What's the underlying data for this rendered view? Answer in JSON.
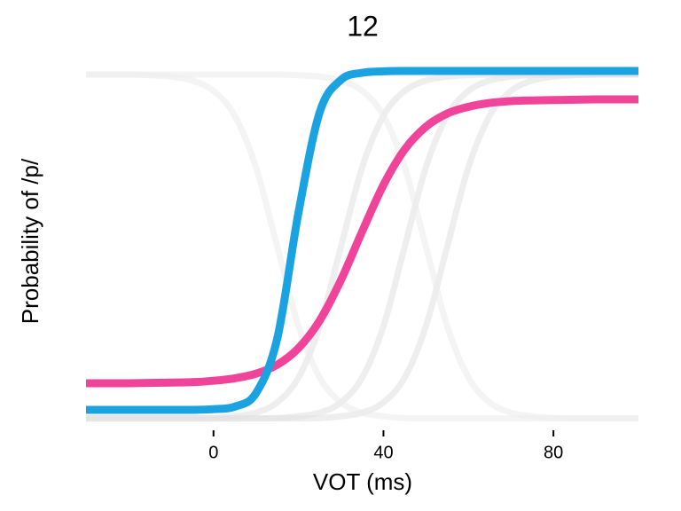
{
  "chart_data": {
    "type": "line",
    "title": "12",
    "xlabel": "VOT (ms)",
    "ylabel": "Probability of /p/",
    "x": [
      -30,
      -25,
      -20,
      -15,
      -10,
      -5,
      0,
      5,
      10,
      15,
      20,
      25,
      30,
      35,
      40,
      45,
      50,
      55,
      60,
      65,
      70,
      75,
      80,
      85,
      90,
      95,
      100
    ],
    "xlim": [
      -30,
      100
    ],
    "xticks": [
      0,
      40,
      80
    ],
    "ylim": [
      0,
      1
    ],
    "series": [
      {
        "color": "#e3e3e3",
        "values": [
          0.001,
          0.001,
          0.001,
          0.001,
          0.001,
          0.001,
          0.002,
          0.007,
          0.017,
          0.046,
          0.116,
          0.261,
          0.485,
          0.709,
          0.854,
          0.924,
          0.953,
          0.964,
          0.968,
          0.97,
          0.97,
          0.97,
          0.97,
          0.97,
          0.97,
          0.97,
          0.97
        ]
      },
      {
        "color": "#e3e3e3",
        "values": [
          0.001,
          0.001,
          0.001,
          0.001,
          0.001,
          0.001,
          0.001,
          0.001,
          0.001,
          0.002,
          0.007,
          0.017,
          0.046,
          0.116,
          0.261,
          0.485,
          0.709,
          0.854,
          0.924,
          0.953,
          0.964,
          0.968,
          0.97,
          0.97,
          0.97,
          0.97,
          0.97
        ]
      },
      {
        "color": "#e3e3e3",
        "values": [
          0.001,
          0.001,
          0.001,
          0.001,
          0.001,
          0.001,
          0.001,
          0.001,
          0.001,
          0.001,
          0.001,
          0.002,
          0.007,
          0.017,
          0.046,
          0.116,
          0.261,
          0.485,
          0.709,
          0.854,
          0.924,
          0.953,
          0.964,
          0.968,
          0.97,
          0.97,
          0.97
        ]
      },
      {
        "color": "#ececec",
        "values": [
          0.97,
          0.97,
          0.97,
          0.968,
          0.964,
          0.953,
          0.924,
          0.854,
          0.709,
          0.485,
          0.261,
          0.116,
          0.046,
          0.017,
          0.007,
          0.002,
          0.001,
          0.001,
          0.001,
          0.001,
          0.001,
          0.001,
          0.001,
          0.001,
          0.001,
          0.001,
          0.001
        ]
      },
      {
        "color": "#ececec",
        "values": [
          0.97,
          0.97,
          0.97,
          0.97,
          0.97,
          0.97,
          0.97,
          0.97,
          0.97,
          0.97,
          0.968,
          0.964,
          0.953,
          0.924,
          0.854,
          0.709,
          0.485,
          0.261,
          0.116,
          0.046,
          0.017,
          0.007,
          0.002,
          0.001,
          0.001,
          0.001,
          0.001
        ]
      },
      {
        "color": "#f0449a",
        "values": [
          0.1,
          0.1,
          0.1,
          0.101,
          0.102,
          0.103,
          0.107,
          0.114,
          0.127,
          0.152,
          0.199,
          0.277,
          0.391,
          0.528,
          0.659,
          0.759,
          0.823,
          0.86,
          0.879,
          0.89,
          0.895,
          0.897,
          0.898,
          0.899,
          0.9,
          0.9,
          0.9
        ]
      },
      {
        "color": "#1aa3e0",
        "values": [
          0.025,
          0.025,
          0.025,
          0.025,
          0.025,
          0.025,
          0.027,
          0.034,
          0.072,
          0.226,
          0.581,
          0.864,
          0.955,
          0.975,
          0.979,
          0.98,
          0.98,
          0.98,
          0.98,
          0.98,
          0.98,
          0.98,
          0.98,
          0.98,
          0.98,
          0.98,
          0.98
        ]
      }
    ]
  }
}
